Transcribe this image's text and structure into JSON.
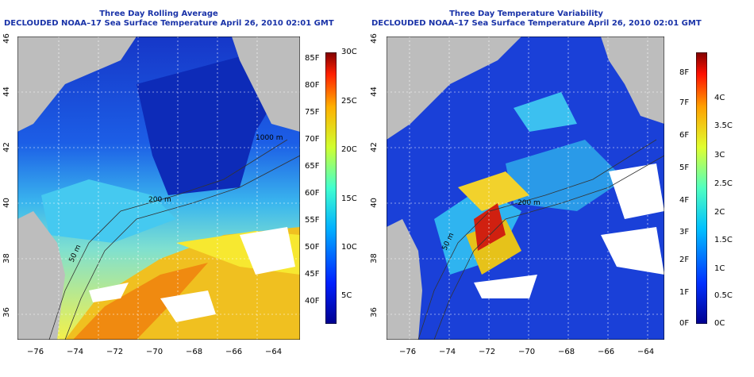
{
  "left_panel": {
    "title": "Three Day Rolling Average",
    "subtitle": "DECLOUDED NOAA–17 Sea Surface Temperature April 26, 2010 02:01 GMT",
    "x_ticks": [
      "−76",
      "−74",
      "−72",
      "−70",
      "−68",
      "−66",
      "−64"
    ],
    "y_ticks": [
      "36",
      "38",
      "40",
      "42",
      "44",
      "46"
    ],
    "contour_labels": [
      "200 m",
      "200 m",
      "1000 m",
      "200 m",
      "50 m"
    ],
    "colorbar_f": [
      "85F",
      "80F",
      "75F",
      "70F",
      "65F",
      "60F",
      "55F",
      "50F",
      "45F",
      "40F"
    ],
    "colorbar_c": [
      "30C",
      "25C",
      "20C",
      "15C",
      "10C",
      "5C"
    ]
  },
  "right_panel": {
    "title": "Three Day Temperature Variability",
    "subtitle": "DECLOUDED NOAA–17 Sea Surface Temperature April 26, 2010 02:01 GMT",
    "x_ticks": [
      "−76",
      "−74",
      "−72",
      "−70",
      "−68",
      "−66",
      "−64"
    ],
    "y_ticks": [
      "36",
      "38",
      "40",
      "42",
      "44",
      "46"
    ],
    "contour_labels": [
      "200 m",
      "50 m"
    ],
    "colorbar_f": [
      "8F",
      "7F",
      "6F",
      "5F",
      "4F",
      "3F",
      "2F",
      "1F",
      "0F"
    ],
    "colorbar_c": [
      "4C",
      "3.5C",
      "3C",
      "2.5C",
      "2C",
      "1.5C",
      "1C",
      "0.5C",
      "0C"
    ]
  },
  "colors": {
    "land": "#bdbdbd",
    "title": "#1a33a8",
    "cloud": "#ffffff"
  }
}
